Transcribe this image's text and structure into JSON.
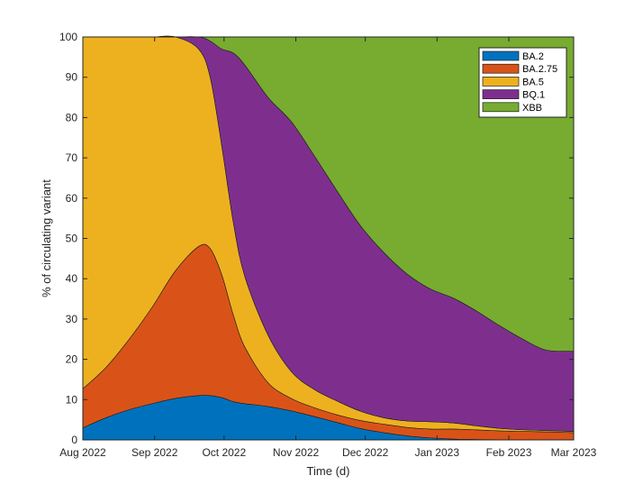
{
  "chart_data": {
    "type": "area",
    "stacked": true,
    "title": "",
    "xlabel": "Time (d)",
    "ylabel": "% of circulating variant",
    "ylim": [
      0,
      100
    ],
    "yticks": [
      0,
      10,
      20,
      30,
      40,
      50,
      60,
      70,
      80,
      90,
      100
    ],
    "xlim": [
      0,
      212
    ],
    "xticks": [
      {
        "value": 0,
        "label": "Aug 2022"
      },
      {
        "value": 31,
        "label": "Sep 2022"
      },
      {
        "value": 61,
        "label": "Oct 2022"
      },
      {
        "value": 92,
        "label": "Nov 2022"
      },
      {
        "value": 122,
        "label": "Dec 2022"
      },
      {
        "value": 153,
        "label": "Jan 2023"
      },
      {
        "value": 184,
        "label": "Feb 2023"
      },
      {
        "value": 212,
        "label": "Mar 2023"
      }
    ],
    "legend_position": "top-right",
    "x": [
      0,
      10,
      20,
      30,
      40,
      50,
      55,
      60,
      65,
      70,
      80,
      90,
      100,
      110,
      120,
      130,
      140,
      150,
      160,
      170,
      180,
      190,
      200,
      212
    ],
    "series": [
      {
        "name": "BA.2",
        "color": "#0072BD",
        "values": [
          3.0,
          5.5,
          7.5,
          9.0,
          10.3,
          11.0,
          11.0,
          10.5,
          9.5,
          9.0,
          8.3,
          7.2,
          5.8,
          4.3,
          2.8,
          1.8,
          1.0,
          0.5,
          0.2,
          0.1,
          0.05,
          0.02,
          0.01,
          0.0
        ]
      },
      {
        "name": "BA.2.75",
        "color": "#D95319",
        "values": [
          9.7,
          12.5,
          17.5,
          24.0,
          31.7,
          37.0,
          36.5,
          30.5,
          21.5,
          14.0,
          5.9,
          3.1,
          2.2,
          1.9,
          2.0,
          2.1,
          2.1,
          2.2,
          2.5,
          2.4,
          2.2,
          2.1,
          2.0,
          1.8
        ]
      },
      {
        "name": "BA.5",
        "color": "#EDB120",
        "values": [
          87.3,
          82.0,
          75.0,
          67.0,
          58.0,
          49.0,
          42.5,
          32.0,
          23.0,
          17.5,
          11.8,
          6.7,
          4.5,
          3.4,
          2.3,
          1.6,
          1.6,
          1.8,
          1.5,
          1.0,
          0.6,
          0.4,
          0.3,
          0.3
        ]
      },
      {
        "name": "BQ.1",
        "color": "#7E2F8E",
        "values": [
          0.0,
          0.0,
          0.0,
          0.0,
          0.0,
          3.0,
          9.0,
          24.0,
          42.0,
          52.5,
          59.0,
          62.0,
          58.0,
          52.0,
          46.0,
          41.0,
          36.5,
          33.0,
          31.0,
          28.5,
          25.5,
          22.5,
          20.0,
          19.9
        ]
      },
      {
        "name": "XBB",
        "color": "#77AC30",
        "values": [
          0.0,
          0.0,
          0.0,
          0.0,
          0.0,
          0.0,
          1.0,
          3.0,
          4.0,
          7.0,
          15.0,
          21.0,
          29.5,
          38.4,
          46.9,
          53.5,
          58.8,
          62.5,
          64.8,
          68.0,
          71.65,
          74.98,
          77.69,
          78.0
        ]
      }
    ]
  }
}
